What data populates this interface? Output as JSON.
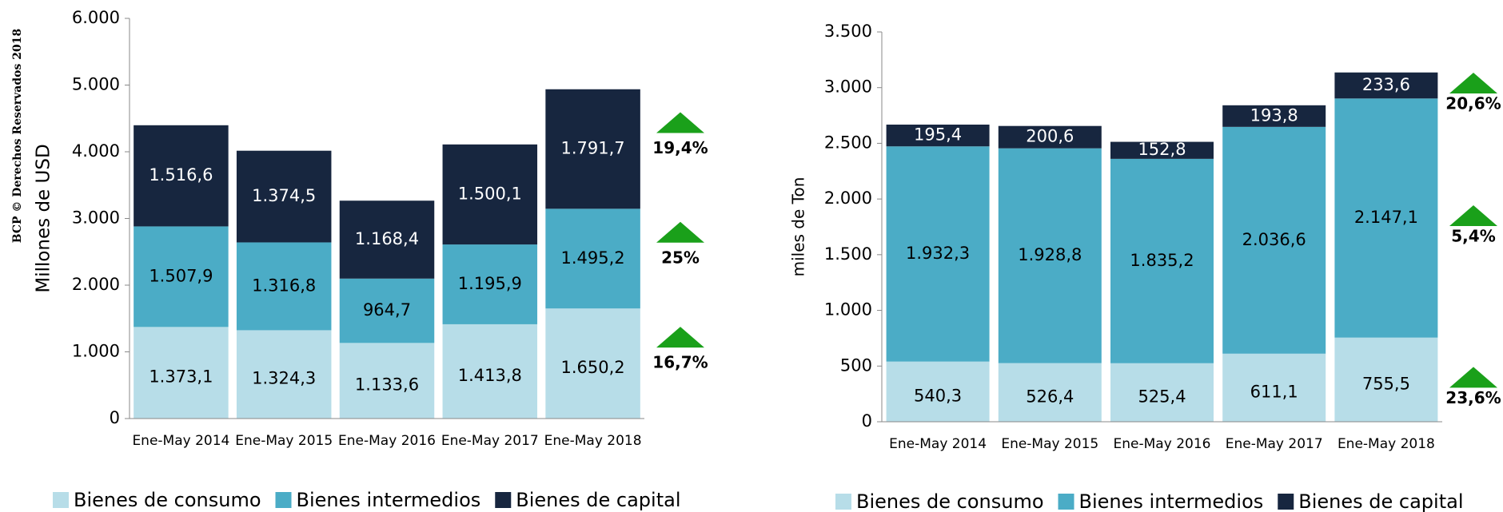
{
  "side_text": "BCP © Derechos Reservados 2018",
  "chart_data": [
    {
      "type": "bar",
      "stacked": true,
      "ylabel": "Millones de  USD",
      "categories": [
        "Ene-May 2014",
        "Ene-May 2015",
        "Ene-May 2016",
        "Ene-May 2017",
        "Ene-May 2018"
      ],
      "ylim": [
        0,
        6000
      ],
      "yticks": [
        0,
        {
          "value": 1000,
          "label": "1.000"
        },
        {
          "value": 2000,
          "label": "2.000"
        },
        {
          "value": 3000,
          "label": "3.000"
        },
        {
          "value": 4000,
          "label": "4.000"
        },
        {
          "value": 5000,
          "label": "5.000"
        },
        {
          "value": 6000,
          "label": "6.000"
        }
      ],
      "series": [
        {
          "name": "Bienes de consumo",
          "color": "#b7dde8",
          "values": [
            1373.1,
            1324.3,
            1133.6,
            1413.8,
            1650.2
          ],
          "value_labels": [
            "1.373,1",
            "1.324,3",
            "1.133,6",
            "1.413,8",
            "1.650,2"
          ],
          "change": "16,7%"
        },
        {
          "name": "Bienes intermedios",
          "color": "#4bacc6",
          "values": [
            1507.9,
            1316.8,
            964.7,
            1195.9,
            1495.2
          ],
          "value_labels": [
            "1.507,9",
            "1.316,8",
            "964,7",
            "1.195,9",
            "1.495,2"
          ],
          "change": "25%"
        },
        {
          "name": "Bienes de capital",
          "color": "#17263f",
          "values": [
            1516.6,
            1374.5,
            1168.4,
            1500.1,
            1791.7
          ],
          "value_labels": [
            "1.516,6",
            "1.374,5",
            "1.168,4",
            "1.500,1",
            "1.791,7"
          ],
          "change": "19,4%"
        }
      ]
    },
    {
      "type": "bar",
      "stacked": true,
      "ylabel": "miles de Ton",
      "categories": [
        "Ene-May 2014",
        "Ene-May 2015",
        "Ene-May 2016",
        "Ene-May 2017",
        "Ene-May 2018"
      ],
      "ylim": [
        0,
        3500
      ],
      "yticks": [
        0,
        500,
        {
          "value": 1000,
          "label": "1.000"
        },
        {
          "value": 1500,
          "label": "1.500"
        },
        {
          "value": 2000,
          "label": "2.000"
        },
        {
          "value": 2500,
          "label": "2.500"
        },
        {
          "value": 3000,
          "label": "3.000"
        },
        {
          "value": 3500,
          "label": "3.500"
        }
      ],
      "series": [
        {
          "name": "Bienes de consumo",
          "color": "#b7dde8",
          "values": [
            540.3,
            526.4,
            525.4,
            611.1,
            755.5
          ],
          "value_labels": [
            "540,3",
            "526,4",
            "525,4",
            "611,1",
            "755,5"
          ],
          "change": "23,6%"
        },
        {
          "name": "Bienes intermedios",
          "color": "#4bacc6",
          "values": [
            1932.3,
            1928.8,
            1835.2,
            2036.6,
            2147.1
          ],
          "value_labels": [
            "1.932,3",
            "1.928,8",
            "1.835,2",
            "2.036,6",
            "2.147,1"
          ],
          "change": "5,4%"
        },
        {
          "name": "Bienes de capital",
          "color": "#17263f",
          "values": [
            195.4,
            200.6,
            152.8,
            193.8,
            233.6
          ],
          "value_labels": [
            "195,4",
            "200,6",
            "152,8",
            "193,8",
            "233,6"
          ],
          "change": "20,6%"
        }
      ]
    }
  ]
}
